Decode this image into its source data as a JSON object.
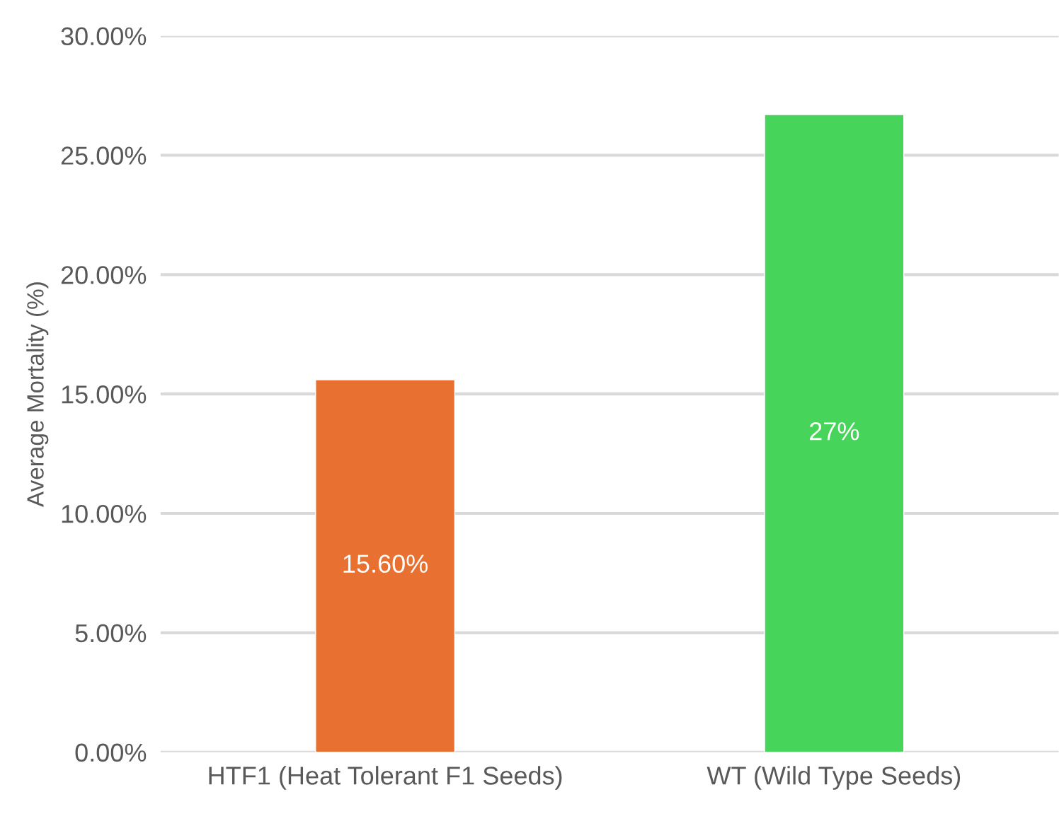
{
  "chart_data": {
    "type": "bar",
    "ylabel": "Average Mortality (%)",
    "categories": [
      "HTF1 (Heat Tolerant F1 Seeds)",
      "WT (Wild Type Seeds)"
    ],
    "values": [
      15.6,
      26.7
    ],
    "value_labels": [
      "15.60%",
      "27%"
    ],
    "colors": [
      "#e87132",
      "#47d45a"
    ],
    "ylim": [
      0,
      30
    ],
    "yticks": [
      {
        "value": 0,
        "label": "0.00%"
      },
      {
        "value": 5,
        "label": "5.00%"
      },
      {
        "value": 10,
        "label": "10.00%"
      },
      {
        "value": 15,
        "label": "15.00%"
      },
      {
        "value": 20,
        "label": "20.00%"
      },
      {
        "value": 25,
        "label": "25.00%"
      },
      {
        "value": 30,
        "label": "30.00%"
      }
    ],
    "grid": "y"
  }
}
